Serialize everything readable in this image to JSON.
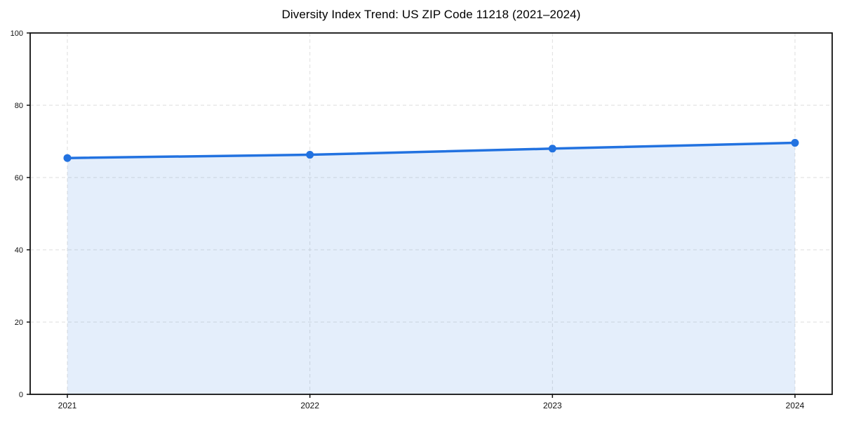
{
  "chart_data": {
    "type": "area",
    "title": "Diversity Index Trend: US ZIP Code 11218 (2021–2024)",
    "categories": [
      "2021",
      "2022",
      "2023",
      "2024"
    ],
    "series": [
      {
        "name": "Diversity Index",
        "values": [
          65.4,
          66.3,
          68.0,
          69.6
        ]
      }
    ],
    "xlabel": "",
    "ylabel": "",
    "ylim": [
      0,
      100
    ],
    "yticks": [
      0,
      20,
      40,
      60,
      80,
      100
    ],
    "grid": true,
    "grid_style": "dashed",
    "legend": false,
    "colors": {
      "line": "#2272e0",
      "marker": "#2272e0",
      "area_fill": "rgba(34,114,224,0.12)",
      "gridline": "#dedede",
      "axis": "#111111",
      "title_text": "#000000",
      "tick_text": "#111111",
      "background": "#ffffff"
    }
  }
}
